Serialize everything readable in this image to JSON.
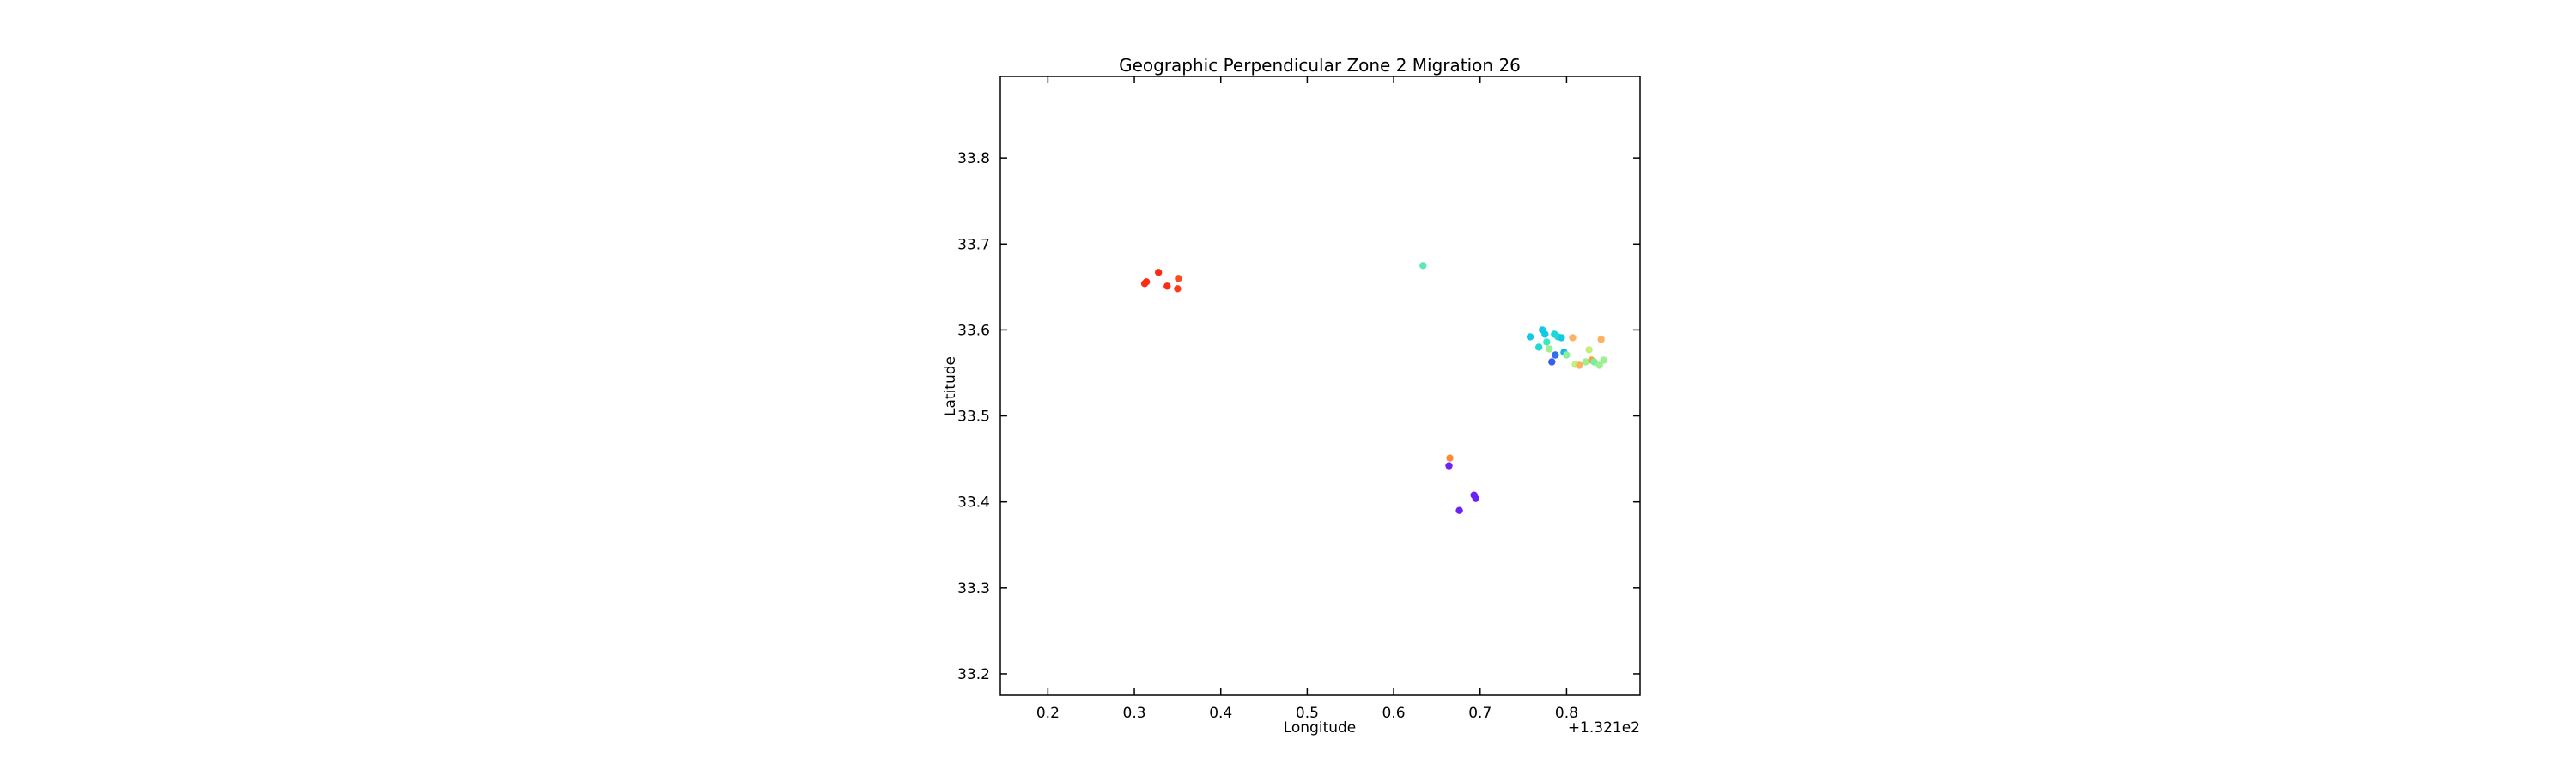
{
  "chart_data": {
    "type": "scatter",
    "title": "Geographic Perpendicular Zone 2 Migration 26",
    "xlabel": "Longitude",
    "ylabel": "Latitude",
    "x_offset_label": "+1.321e2",
    "xlim": [
      0.145,
      0.885
    ],
    "ylim": [
      33.175,
      33.895
    ],
    "xticks": [
      0.2,
      0.3,
      0.4,
      0.5,
      0.6,
      0.7,
      0.8
    ],
    "xtick_labels": [
      "0.2",
      "0.3",
      "0.4",
      "0.5",
      "0.6",
      "0.7",
      "0.8"
    ],
    "yticks": [
      33.2,
      33.3,
      33.4,
      33.5,
      33.6,
      33.7,
      33.8
    ],
    "ytick_labels": [
      "33.2",
      "33.3",
      "33.4",
      "33.5",
      "33.6",
      "33.7",
      "33.8"
    ],
    "grid": false,
    "points": [
      {
        "x": 0.312,
        "y": 33.654,
        "color": "#ff2a12"
      },
      {
        "x": 0.314,
        "y": 33.656,
        "color": "#ff2a12"
      },
      {
        "x": 0.328,
        "y": 33.667,
        "color": "#ff2a12"
      },
      {
        "x": 0.338,
        "y": 33.651,
        "color": "#ff2a12"
      },
      {
        "x": 0.351,
        "y": 33.66,
        "color": "#ff4a20"
      },
      {
        "x": 0.35,
        "y": 33.648,
        "color": "#ff3a18"
      },
      {
        "x": 0.634,
        "y": 33.675,
        "color": "#5ee8b8"
      },
      {
        "x": 0.665,
        "y": 33.451,
        "color": "#ff8a36"
      },
      {
        "x": 0.664,
        "y": 33.442,
        "color": "#6a22f6"
      },
      {
        "x": 0.693,
        "y": 33.408,
        "color": "#6a22f6"
      },
      {
        "x": 0.695,
        "y": 33.404,
        "color": "#6a22f6"
      },
      {
        "x": 0.676,
        "y": 33.39,
        "color": "#6a22f6"
      },
      {
        "x": 0.758,
        "y": 33.592,
        "color": "#12c8e6"
      },
      {
        "x": 0.772,
        "y": 33.6,
        "color": "#12c8e6"
      },
      {
        "x": 0.775,
        "y": 33.595,
        "color": "#12c8e6"
      },
      {
        "x": 0.768,
        "y": 33.58,
        "color": "#22d8d0"
      },
      {
        "x": 0.777,
        "y": 33.586,
        "color": "#3ce6c0"
      },
      {
        "x": 0.78,
        "y": 33.578,
        "color": "#9cf092"
      },
      {
        "x": 0.786,
        "y": 33.595,
        "color": "#1ad8d8"
      },
      {
        "x": 0.79,
        "y": 33.592,
        "color": "#22d8d0"
      },
      {
        "x": 0.794,
        "y": 33.591,
        "color": "#12c8e6"
      },
      {
        "x": 0.787,
        "y": 33.571,
        "color": "#2c6ff0"
      },
      {
        "x": 0.783,
        "y": 33.563,
        "color": "#3a5cf0"
      },
      {
        "x": 0.797,
        "y": 33.574,
        "color": "#1ab2ea"
      },
      {
        "x": 0.8,
        "y": 33.571,
        "color": "#8cf09a"
      },
      {
        "x": 0.807,
        "y": 33.591,
        "color": "#ffb060"
      },
      {
        "x": 0.81,
        "y": 33.56,
        "color": "#bff27a"
      },
      {
        "x": 0.815,
        "y": 33.559,
        "color": "#ffb060"
      },
      {
        "x": 0.822,
        "y": 33.563,
        "color": "#9cf092"
      },
      {
        "x": 0.826,
        "y": 33.577,
        "color": "#c4ee7a"
      },
      {
        "x": 0.829,
        "y": 33.565,
        "color": "#ffa040"
      },
      {
        "x": 0.832,
        "y": 33.563,
        "color": "#78ee9e"
      },
      {
        "x": 0.838,
        "y": 33.559,
        "color": "#9cf092"
      },
      {
        "x": 0.84,
        "y": 33.589,
        "color": "#ffb060"
      },
      {
        "x": 0.843,
        "y": 33.565,
        "color": "#9cf092"
      }
    ]
  }
}
